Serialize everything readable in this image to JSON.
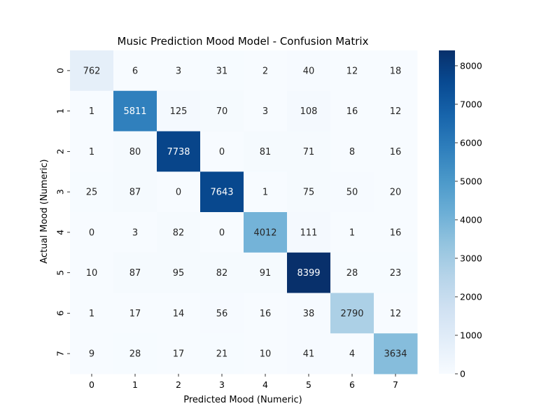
{
  "chart_data": {
    "type": "heatmap",
    "title": "Music Prediction Mood Model - Confusion Matrix",
    "xlabel": "Predicted Mood (Numeric)",
    "ylabel": "Actual Mood (Numeric)",
    "x_categories": [
      "0",
      "1",
      "2",
      "3",
      "4",
      "5",
      "6",
      "7"
    ],
    "y_categories": [
      "0",
      "1",
      "2",
      "3",
      "4",
      "5",
      "6",
      "7"
    ],
    "values": [
      [
        762,
        6,
        3,
        31,
        2,
        40,
        12,
        18
      ],
      [
        1,
        5811,
        125,
        70,
        3,
        108,
        16,
        12
      ],
      [
        1,
        80,
        7738,
        0,
        81,
        71,
        8,
        16
      ],
      [
        25,
        87,
        0,
        7643,
        1,
        75,
        50,
        20
      ],
      [
        0,
        3,
        82,
        0,
        4012,
        111,
        1,
        16
      ],
      [
        10,
        87,
        95,
        82,
        91,
        8399,
        28,
        23
      ],
      [
        1,
        17,
        14,
        56,
        16,
        38,
        2790,
        12
      ],
      [
        9,
        28,
        17,
        21,
        10,
        41,
        4,
        3634
      ]
    ],
    "colorbar": {
      "colormap": "Blues",
      "range": [
        0,
        8399
      ],
      "ticks": [
        0,
        1000,
        2000,
        3000,
        4000,
        5000,
        6000,
        7000,
        8000
      ]
    },
    "grid": false
  }
}
